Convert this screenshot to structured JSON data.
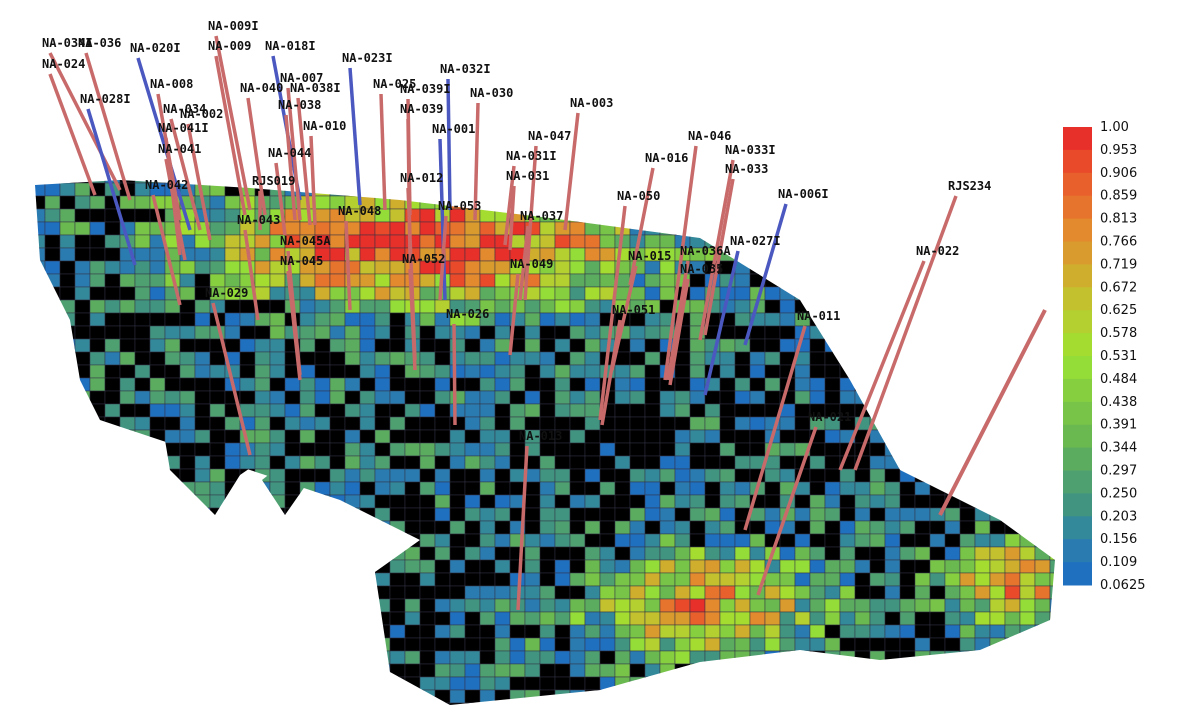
{
  "wells": [
    {
      "label": "NA-024",
      "color": "#c86a6a"
    },
    {
      "label": "NA-034I",
      "color": "#c86a6a"
    },
    {
      "label": "NA-036",
      "color": "#c86a6a"
    },
    {
      "label": "NA-020I",
      "color": "#4a58c0"
    },
    {
      "label": "NA-009I",
      "color": "#c86a6a"
    },
    {
      "label": "NA-009",
      "color": "#c86a6a"
    },
    {
      "label": "NA-018I",
      "color": "#4a58c0"
    },
    {
      "label": "NA-023I",
      "color": "#4a58c0"
    },
    {
      "label": "NA-032I",
      "color": "#4a58c0"
    },
    {
      "label": "NA-025",
      "color": "#c86a6a"
    },
    {
      "label": "NA-039I",
      "color": "#c86a6a"
    },
    {
      "label": "NA-030",
      "color": "#c86a6a"
    },
    {
      "label": "NA-003",
      "color": "#c86a6a"
    },
    {
      "label": "NA-028I",
      "color": "#4a58c0"
    },
    {
      "label": "NA-008",
      "color": "#c86a6a"
    },
    {
      "label": "NA-034",
      "color": "#c86a6a"
    },
    {
      "label": "NA-040",
      "color": "#c86a6a"
    },
    {
      "label": "NA-007",
      "color": "#c86a6a"
    },
    {
      "label": "NA-038I",
      "color": "#c86a6a"
    },
    {
      "label": "NA-038",
      "color": "#c86a6a"
    },
    {
      "label": "NA-039",
      "color": "#c86a6a"
    },
    {
      "label": "NA-001",
      "color": "#4a58c0"
    },
    {
      "label": "NA-047",
      "color": "#c86a6a"
    },
    {
      "label": "NA-046",
      "color": "#c86a6a"
    },
    {
      "label": "NA-016",
      "color": "#c86a6a"
    },
    {
      "label": "NA-033I",
      "color": "#c86a6a"
    },
    {
      "label": "NA-033",
      "color": "#c86a6a"
    },
    {
      "label": "NA-031I",
      "color": "#c86a6a"
    },
    {
      "label": "NA-031",
      "color": "#c86a6a"
    },
    {
      "label": "NA-002",
      "color": "#c86a6a"
    },
    {
      "label": "NA-041I",
      "color": "#c86a6a"
    },
    {
      "label": "NA-041",
      "color": "#c86a6a"
    },
    {
      "label": "NA-010",
      "color": "#c86a6a"
    },
    {
      "label": "NA-044",
      "color": "#c86a6a"
    },
    {
      "label": "RJS019",
      "color": "#c86a6a"
    },
    {
      "label": "NA-042",
      "color": "#c86a6a"
    },
    {
      "label": "NA-012",
      "color": "#c86a6a"
    },
    {
      "label": "NA-053",
      "color": "#c86a6a"
    },
    {
      "label": "NA-048",
      "color": "#c86a6a"
    },
    {
      "label": "NA-037",
      "color": "#c86a6a"
    },
    {
      "label": "NA-050",
      "color": "#c86a6a"
    },
    {
      "label": "NA-006I",
      "color": "#4a58c0"
    },
    {
      "label": "RJS234",
      "color": "#c86a6a"
    },
    {
      "label": "NA-043",
      "color": "#c86a6a"
    },
    {
      "label": "NA-045A",
      "color": "#c86a6a"
    },
    {
      "label": "NA-045",
      "color": "#c86a6a"
    },
    {
      "label": "NA-052",
      "color": "#c86a6a"
    },
    {
      "label": "NA-049",
      "color": "#c86a6a"
    },
    {
      "label": "NA-015",
      "color": "#c86a6a"
    },
    {
      "label": "NA-036A",
      "color": "#c86a6a"
    },
    {
      "label": "NA-035",
      "color": "#c86a6a"
    },
    {
      "label": "NA-027I",
      "color": "#4a58c0"
    },
    {
      "label": "NA-022",
      "color": "#c86a6a"
    },
    {
      "label": "NA-029",
      "color": "#c86a6a"
    },
    {
      "label": "NA-026",
      "color": "#c86a6a"
    },
    {
      "label": "NA-051",
      "color": "#c86a6a"
    },
    {
      "label": "NA-011",
      "color": "#c86a6a"
    },
    {
      "label": "NA-021",
      "color": "#c86a6a"
    },
    {
      "label": "NA-013",
      "color": "#c86a6a"
    }
  ],
  "colorbar": {
    "labels": [
      "1.00",
      "0.953",
      "0.906",
      "0.859",
      "0.813",
      "0.766",
      "0.719",
      "0.672",
      "0.625",
      "0.578",
      "0.531",
      "0.484",
      "0.438",
      "0.391",
      "0.344",
      "0.297",
      "0.250",
      "0.203",
      "0.156",
      "0.109",
      "0.0625"
    ]
  }
}
